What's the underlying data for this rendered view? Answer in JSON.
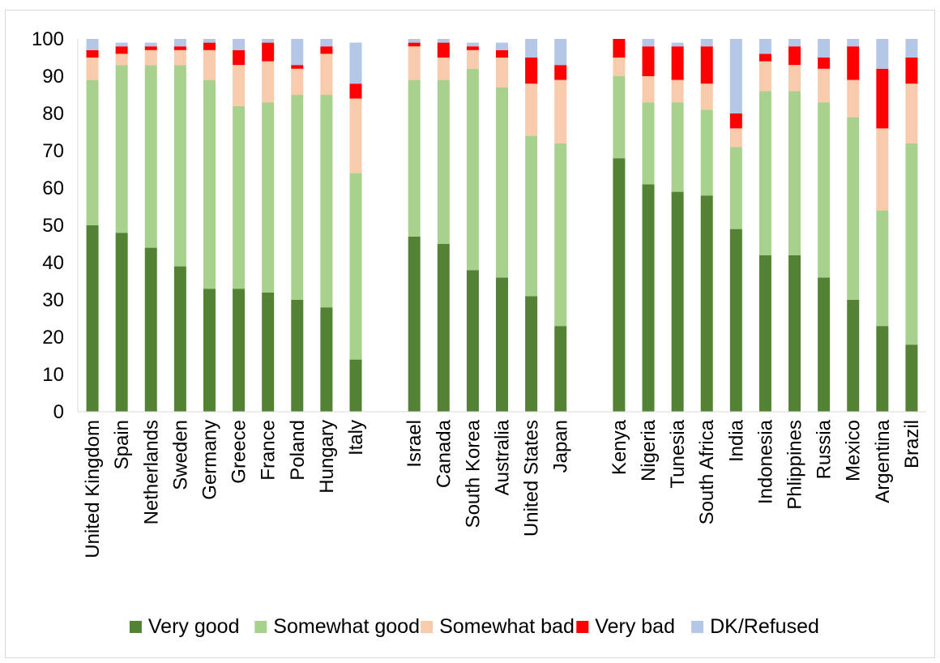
{
  "chart_data": {
    "type": "bar",
    "stacked": true,
    "title": "",
    "xlabel": "",
    "ylabel": "",
    "ylim": [
      0,
      100
    ],
    "yticks": [
      0,
      10,
      20,
      30,
      40,
      50,
      60,
      70,
      80,
      90,
      100
    ],
    "grid": false,
    "legend_position": "bottom",
    "groups": [
      {
        "categories": [
          "United Kingdom",
          "Spain",
          "Netherlands",
          "Sweden",
          "Germany",
          "Greece",
          "France",
          "Poland",
          "Hungary",
          "Italy"
        ]
      },
      {
        "categories": [
          "Israel",
          "Canada",
          "South Korea",
          "Australia",
          "United States",
          "Japan"
        ]
      },
      {
        "categories": [
          "Kenya",
          "Nigeria",
          "Tunesia",
          "South Africa",
          "India",
          "Indonesia",
          "Phlippines",
          "Russia",
          "Mexico",
          "Argentina",
          "Brazil"
        ]
      }
    ],
    "categories": [
      "United Kingdom",
      "Spain",
      "Netherlands",
      "Sweden",
      "Germany",
      "Greece",
      "France",
      "Poland",
      "Hungary",
      "Italy",
      "Israel",
      "Canada",
      "South Korea",
      "Australia",
      "United States",
      "Japan",
      "Kenya",
      "Nigeria",
      "Tunesia",
      "South Africa",
      "India",
      "Indonesia",
      "Phlippines",
      "Russia",
      "Mexico",
      "Argentina",
      "Brazil"
    ],
    "series": [
      {
        "name": "Very good",
        "color": "#548235",
        "values": [
          50,
          48,
          44,
          39,
          33,
          33,
          32,
          30,
          28,
          14,
          47,
          45,
          38,
          36,
          31,
          23,
          68,
          61,
          59,
          58,
          49,
          42,
          42,
          36,
          30,
          23,
          18
        ]
      },
      {
        "name": "Somewhat good",
        "color": "#a9d18e",
        "values": [
          39,
          45,
          49,
          54,
          56,
          49,
          51,
          55,
          57,
          50,
          42,
          44,
          54,
          51,
          43,
          49,
          22,
          22,
          24,
          23,
          22,
          44,
          44,
          47,
          49,
          31,
          54
        ]
      },
      {
        "name": "Somewhat bad",
        "color": "#f8cbad",
        "values": [
          6,
          3,
          4,
          4,
          8,
          11,
          11,
          7,
          11,
          20,
          9,
          6,
          5,
          8,
          14,
          17,
          5,
          7,
          6,
          7,
          5,
          8,
          7,
          9,
          10,
          22,
          16
        ]
      },
      {
        "name": "Very bad",
        "color": "#ff0000",
        "values": [
          2,
          2,
          1,
          1,
          2,
          4,
          5,
          1,
          2,
          4,
          1,
          4,
          1,
          2,
          7,
          4,
          5,
          8,
          9,
          10,
          4,
          2,
          5,
          3,
          9,
          16,
          7
        ]
      },
      {
        "name": "DK/Refused",
        "color": "#b4c7e7",
        "values": [
          3,
          1,
          1,
          2,
          1,
          3,
          1,
          7,
          2,
          11,
          1,
          1,
          1,
          2,
          5,
          7,
          0,
          2,
          1,
          2,
          20,
          4,
          2,
          5,
          2,
          8,
          5
        ]
      }
    ]
  }
}
